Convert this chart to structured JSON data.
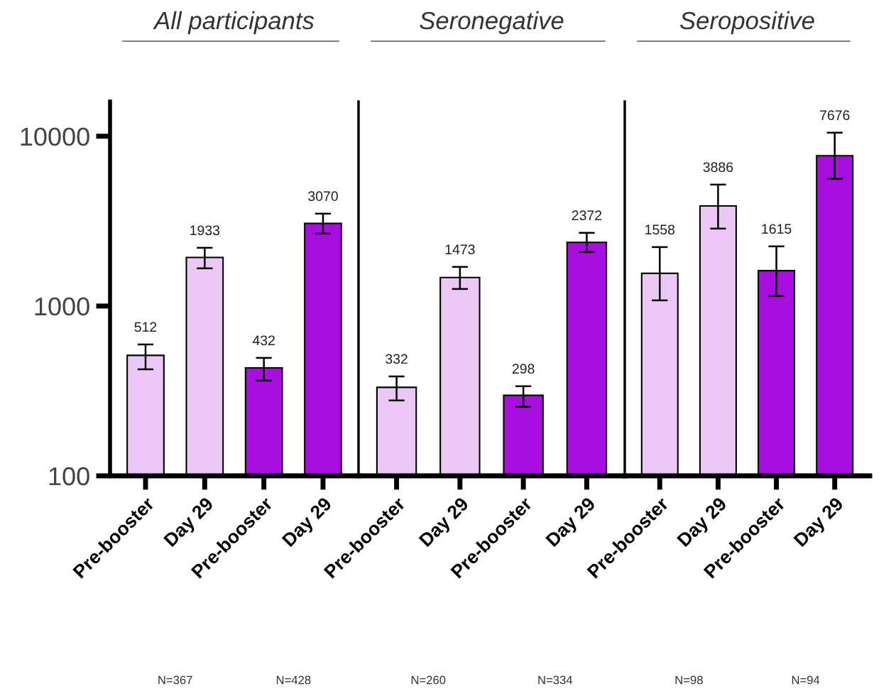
{
  "chart_data": [
    {
      "type": "bar",
      "title": "All participants",
      "categories": [
        "Pre-booster",
        "Day 29",
        "Pre-booster",
        "Day 29"
      ],
      "values": [
        512,
        1933,
        432,
        3070
      ],
      "colors": [
        "#ecc8f6",
        "#ecc8f6",
        "#a80ee0",
        "#a80ee0"
      ],
      "errors": [
        [
          424,
          594
        ],
        [
          1667,
          2203
        ],
        [
          364,
          495
        ],
        [
          2672,
          3499
        ]
      ],
      "data_labels": true,
      "log": true,
      "ylim": [
        100,
        16000
      ],
      "yticks": [
        100,
        1000,
        10000
      ],
      "grid": false,
      "legend": false,
      "annotations": [
        "N=367",
        "N=428"
      ]
    },
    {
      "type": "bar",
      "title": "Seronegative",
      "categories": [
        "Pre-booster",
        "Day 29",
        "Pre-booster",
        "Day 29"
      ],
      "values": [
        332,
        1473,
        298,
        2372
      ],
      "colors": [
        "#ecc8f6",
        "#ecc8f6",
        "#a80ee0",
        "#a80ee0"
      ],
      "errors": [
        [
          278,
          385
        ],
        [
          1260,
          1700
        ],
        [
          255,
          337
        ],
        [
          2080,
          2698
        ]
      ],
      "data_labels": true,
      "log": true,
      "ylim": [
        100,
        16000
      ],
      "tick_labels": "x",
      "grid": false,
      "legend": false,
      "annotations": [
        "N=260",
        "N=334"
      ]
    },
    {
      "type": "bar",
      "title": "Seropositive",
      "categories": [
        "Pre-booster",
        "Day 29",
        "Pre-booster",
        "Day 29"
      ],
      "values": [
        1558,
        3886,
        1615,
        7676
      ],
      "colors": [
        "#ecc8f6",
        "#ecc8f6",
        "#a80ee0",
        "#a80ee0"
      ],
      "errors": [
        [
          1080,
          2224
        ],
        [
          2858,
          5190
        ],
        [
          1145,
          2246
        ],
        [
          5610,
          10490
        ]
      ],
      "data_labels": true,
      "log": true,
      "ylim": [
        100,
        16000
      ],
      "tick_labels": "x",
      "grid": false,
      "legend": false,
      "annotations": [
        "N=98",
        "N=94"
      ]
    }
  ]
}
